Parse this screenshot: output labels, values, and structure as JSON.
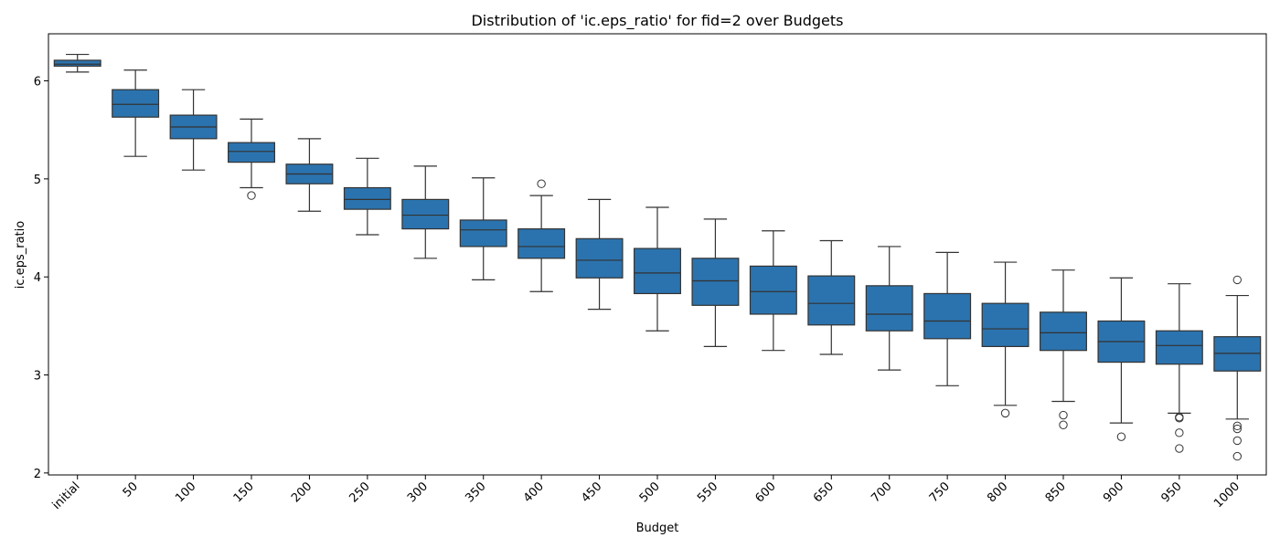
{
  "chart_data": {
    "type": "box",
    "title": "Distribution of 'ic.eps_ratio' for fid=2 over Budgets",
    "xlabel": "Budget",
    "ylabel": "ic.eps_ratio",
    "ylim": [
      1.98,
      6.48
    ],
    "yticks": [
      2,
      3,
      4,
      5,
      6
    ],
    "box_color": "#2b73ae",
    "line_color": "#333333",
    "grid": false,
    "categories": [
      "initial",
      "50",
      "100",
      "150",
      "200",
      "250",
      "300",
      "350",
      "400",
      "450",
      "500",
      "550",
      "600",
      "650",
      "700",
      "750",
      "800",
      "850",
      "900",
      "950",
      "1000"
    ],
    "boxes": [
      {
        "whislo": 6.09,
        "q1": 6.15,
        "med": 6.17,
        "q3": 6.21,
        "whishi": 6.27,
        "fliers": []
      },
      {
        "whislo": 5.23,
        "q1": 5.63,
        "med": 5.76,
        "q3": 5.91,
        "whishi": 6.11,
        "fliers": []
      },
      {
        "whislo": 5.09,
        "q1": 5.41,
        "med": 5.53,
        "q3": 5.65,
        "whishi": 5.91,
        "fliers": []
      },
      {
        "whislo": 4.91,
        "q1": 5.17,
        "med": 5.28,
        "q3": 5.37,
        "whishi": 5.61,
        "fliers": [
          4.83
        ]
      },
      {
        "whislo": 4.67,
        "q1": 4.95,
        "med": 5.05,
        "q3": 5.15,
        "whishi": 5.41,
        "fliers": []
      },
      {
        "whislo": 4.43,
        "q1": 4.69,
        "med": 4.79,
        "q3": 4.91,
        "whishi": 5.21,
        "fliers": []
      },
      {
        "whislo": 4.19,
        "q1": 4.49,
        "med": 4.63,
        "q3": 4.79,
        "whishi": 5.13,
        "fliers": []
      },
      {
        "whislo": 3.97,
        "q1": 4.31,
        "med": 4.48,
        "q3": 4.58,
        "whishi": 5.01,
        "fliers": []
      },
      {
        "whislo": 3.85,
        "q1": 4.19,
        "med": 4.31,
        "q3": 4.49,
        "whishi": 4.83,
        "fliers": [
          4.95
        ]
      },
      {
        "whislo": 3.67,
        "q1": 3.99,
        "med": 4.17,
        "q3": 4.39,
        "whishi": 4.79,
        "fliers": []
      },
      {
        "whislo": 3.45,
        "q1": 3.83,
        "med": 4.04,
        "q3": 4.29,
        "whishi": 4.71,
        "fliers": []
      },
      {
        "whislo": 3.29,
        "q1": 3.71,
        "med": 3.96,
        "q3": 4.19,
        "whishi": 4.59,
        "fliers": []
      },
      {
        "whislo": 3.25,
        "q1": 3.62,
        "med": 3.85,
        "q3": 4.11,
        "whishi": 4.47,
        "fliers": []
      },
      {
        "whislo": 3.21,
        "q1": 3.51,
        "med": 3.73,
        "q3": 4.01,
        "whishi": 4.37,
        "fliers": []
      },
      {
        "whislo": 3.05,
        "q1": 3.45,
        "med": 3.62,
        "q3": 3.91,
        "whishi": 4.31,
        "fliers": []
      },
      {
        "whislo": 2.89,
        "q1": 3.37,
        "med": 3.55,
        "q3": 3.83,
        "whishi": 4.25,
        "fliers": []
      },
      {
        "whislo": 2.69,
        "q1": 3.29,
        "med": 3.47,
        "q3": 3.73,
        "whishi": 4.15,
        "fliers": [
          2.61
        ]
      },
      {
        "whislo": 2.73,
        "q1": 3.25,
        "med": 3.43,
        "q3": 3.64,
        "whishi": 4.07,
        "fliers": [
          2.59,
          2.49
        ]
      },
      {
        "whislo": 2.51,
        "q1": 3.13,
        "med": 3.34,
        "q3": 3.55,
        "whishi": 3.99,
        "fliers": [
          2.37
        ]
      },
      {
        "whislo": 2.61,
        "q1": 3.11,
        "med": 3.3,
        "q3": 3.45,
        "whishi": 3.93,
        "fliers": [
          2.57,
          2.56,
          2.41,
          2.25
        ]
      },
      {
        "whislo": 2.55,
        "q1": 3.04,
        "med": 3.22,
        "q3": 3.39,
        "whishi": 3.81,
        "fliers": [
          3.97,
          2.48,
          2.45,
          2.33,
          2.17
        ]
      }
    ]
  }
}
